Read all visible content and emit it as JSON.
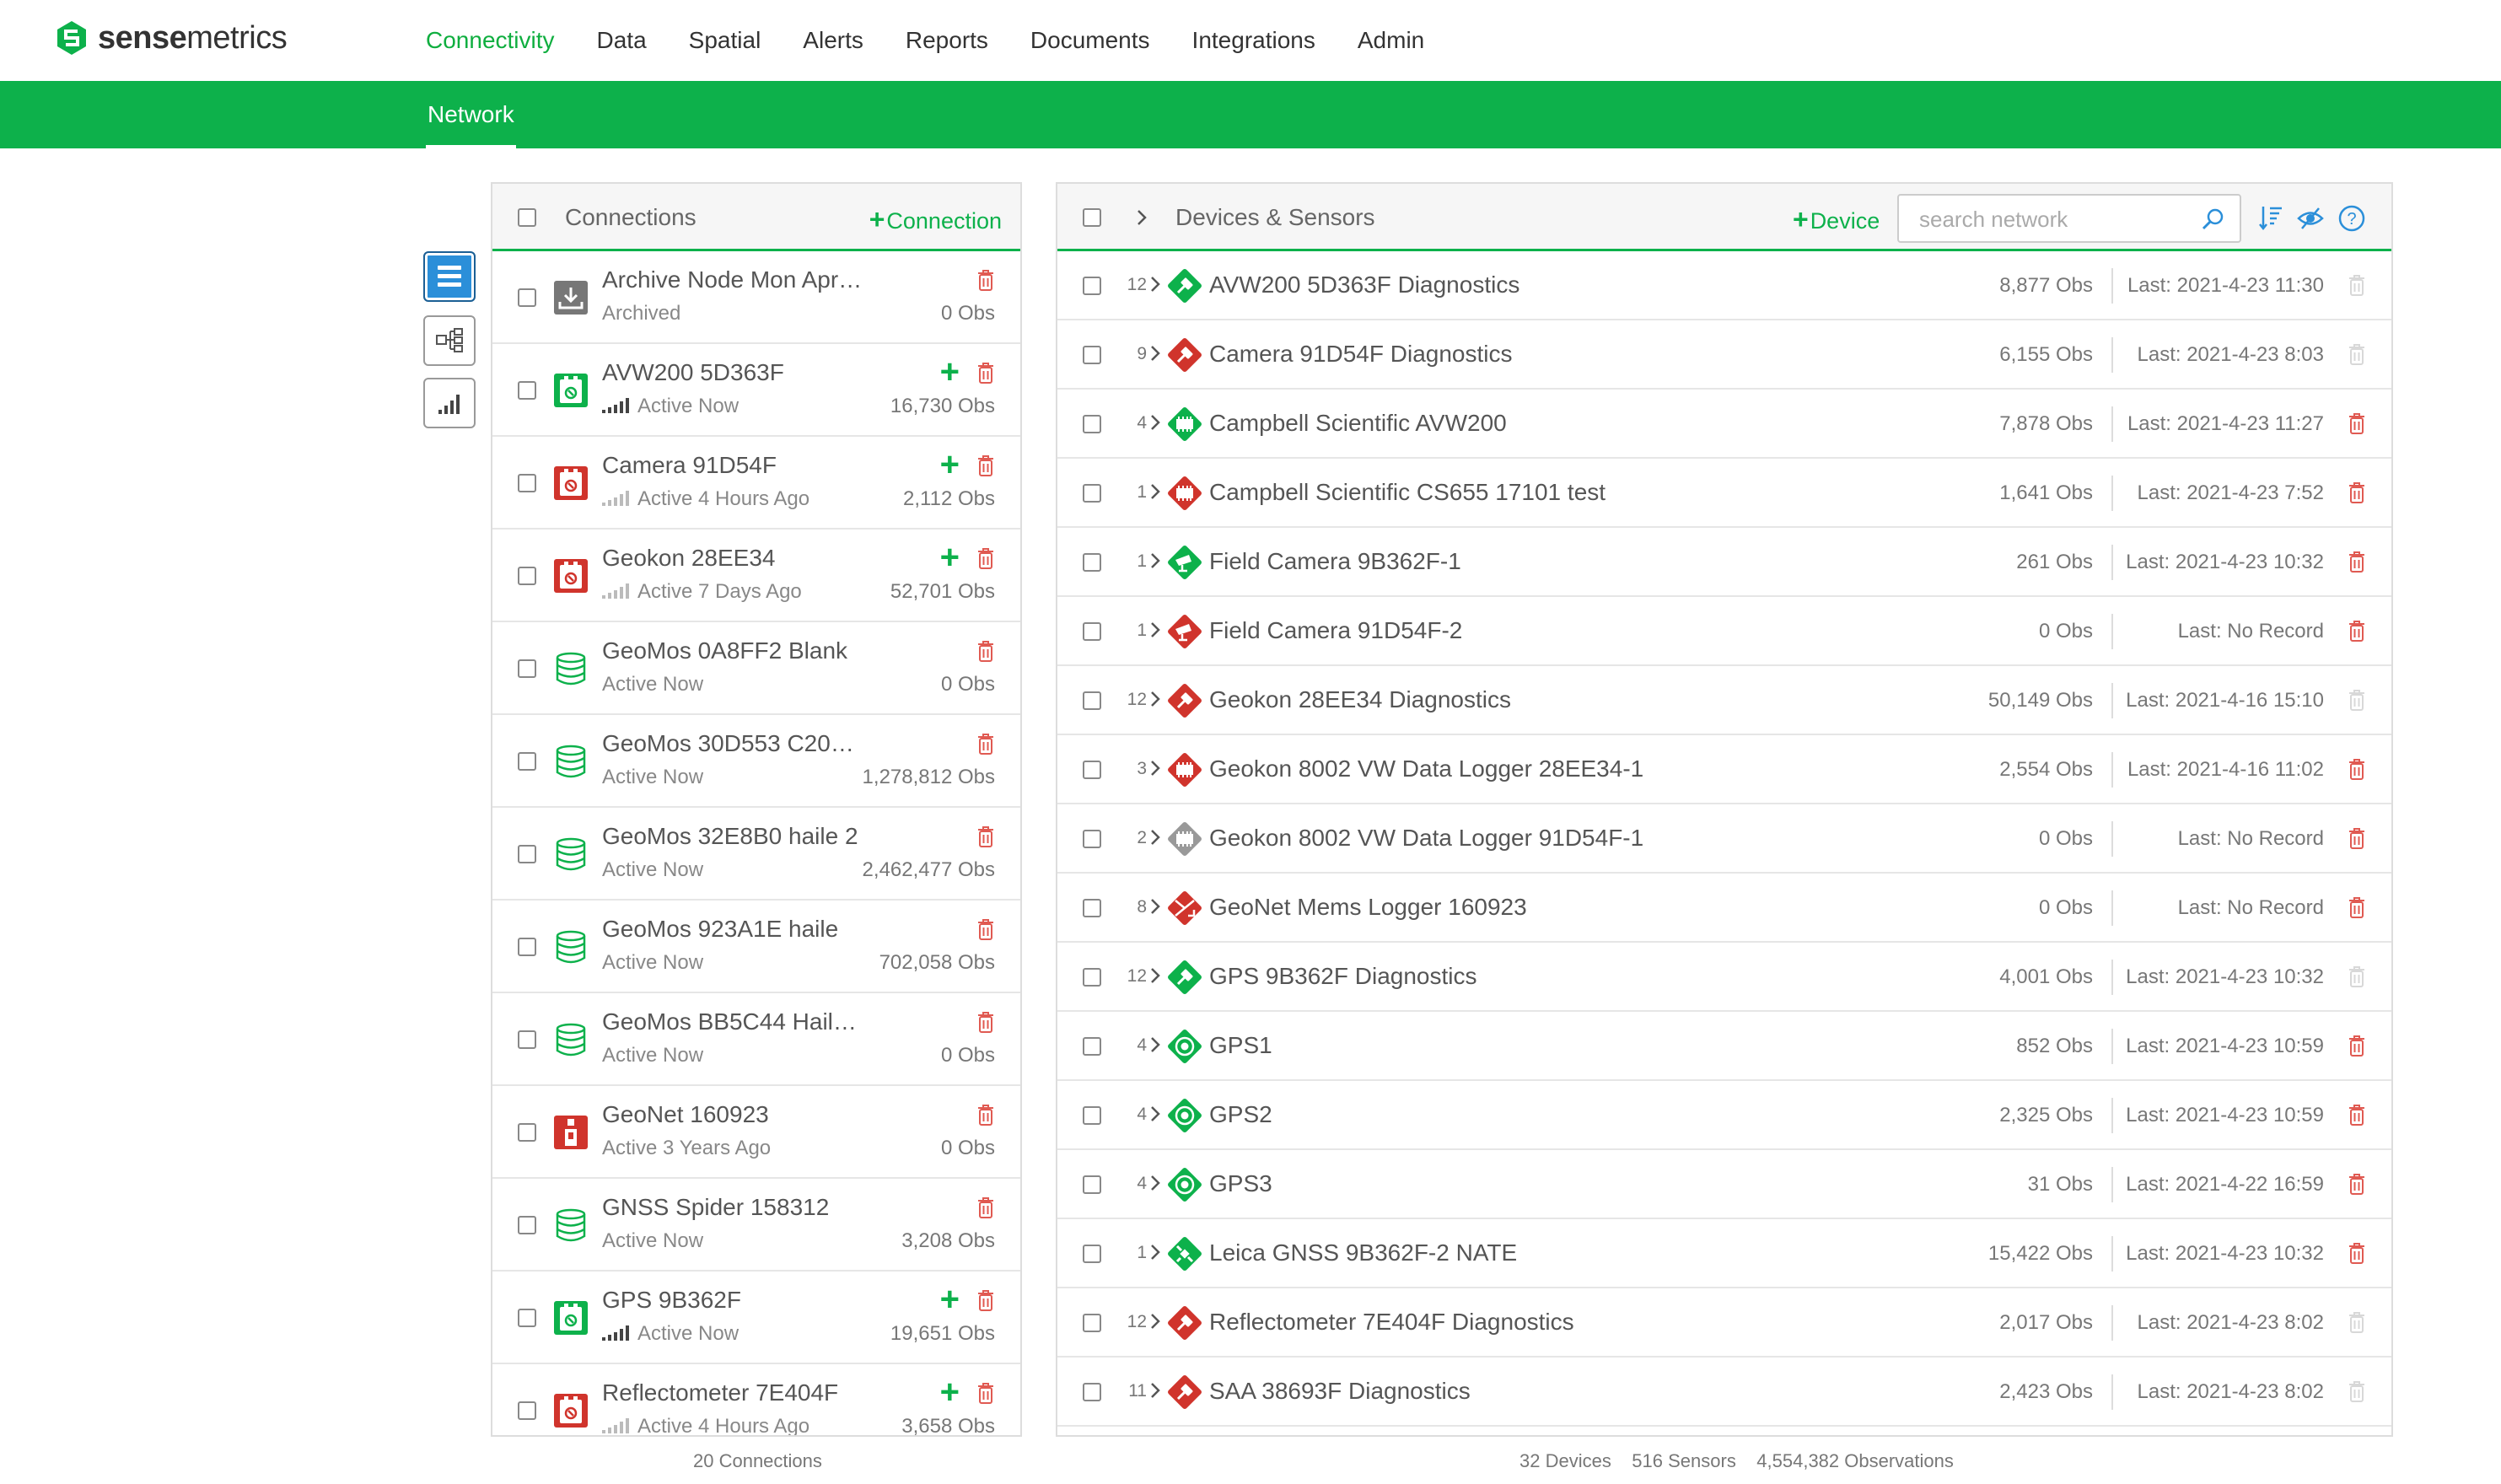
{
  "app": {
    "brand_bold": "sense",
    "brand_light": "metrics",
    "nav": [
      {
        "label": "Connectivity",
        "active": true
      },
      {
        "label": "Data"
      },
      {
        "label": "Spatial"
      },
      {
        "label": "Alerts"
      },
      {
        "label": "Reports"
      },
      {
        "label": "Documents"
      },
      {
        "label": "Integrations"
      },
      {
        "label": "Admin"
      }
    ],
    "subtab": "Network",
    "accent_color": "#0db14b"
  },
  "connections": {
    "title": "Connections",
    "add_label": "Connection",
    "footer": "20 Connections",
    "items": [
      {
        "name": "Archive Node Mon Apr…",
        "status": "Archived",
        "obs": "0 Obs",
        "icon": "archive-icon",
        "signal": false,
        "plus": false
      },
      {
        "name": "AVW200 5D363F",
        "status": "Active Now",
        "obs": "16,730 Obs",
        "icon": "green-logger-icon",
        "signal": "strong",
        "plus": true
      },
      {
        "name": "Camera 91D54F",
        "status": "Active 4 Hours Ago",
        "obs": "2,112 Obs",
        "icon": "red-logger-icon",
        "signal": "weak",
        "plus": true
      },
      {
        "name": "Geokon 28EE34",
        "status": "Active 7 Days Ago",
        "obs": "52,701 Obs",
        "icon": "red-logger-icon",
        "signal": "weak",
        "plus": true
      },
      {
        "name": "GeoMos 0A8FF2 Blank",
        "status": "Active Now",
        "obs": "0 Obs",
        "icon": "database-icon",
        "signal": false,
        "plus": false
      },
      {
        "name": "GeoMos 30D553 C20…",
        "status": "Active Now",
        "obs": "1,278,812 Obs",
        "icon": "database-icon",
        "signal": false,
        "plus": false
      },
      {
        "name": "GeoMos 32E8B0 haile 2",
        "status": "Active Now",
        "obs": "2,462,477 Obs",
        "icon": "database-icon",
        "signal": false,
        "plus": false
      },
      {
        "name": "GeoMos 923A1E haile",
        "status": "Active Now",
        "obs": "702,058 Obs",
        "icon": "database-icon",
        "signal": false,
        "plus": false
      },
      {
        "name": "GeoMos BB5C44 Hail…",
        "status": "Active Now",
        "obs": "0 Obs",
        "icon": "database-icon",
        "signal": false,
        "plus": false
      },
      {
        "name": "GeoNet 160923",
        "status": "Active 3 Years Ago",
        "obs": "0 Obs",
        "icon": "red-node-icon",
        "signal": false,
        "plus": false
      },
      {
        "name": "GNSS Spider 158312",
        "status": "Active Now",
        "obs": "3,208 Obs",
        "icon": "database-icon",
        "signal": false,
        "plus": false
      },
      {
        "name": "GPS 9B362F",
        "status": "Active Now",
        "obs": "19,651 Obs",
        "icon": "green-logger-icon",
        "signal": "strong",
        "plus": true
      },
      {
        "name": "Reflectometer 7E404F",
        "status": "Active 4 Hours Ago",
        "obs": "3,658 Obs",
        "icon": "red-logger-icon",
        "signal": "weak",
        "plus": true
      }
    ]
  },
  "devices": {
    "title": "Devices & Sensors",
    "add_label": "Device",
    "search_placeholder": "search network",
    "footer_devices": "32 Devices",
    "footer_sensors": "516 Sensors",
    "footer_obs": "4,554,382 Observations",
    "items": [
      {
        "count": "12",
        "name": "AVW200 5D363F Diagnostics",
        "obs": "8,877 Obs",
        "last": "Last: 2021-4-23 11:30",
        "color": "#0db14b",
        "glyph": "wrench",
        "trash": "light"
      },
      {
        "count": "9",
        "name": "Camera 91D54F Diagnostics",
        "obs": "6,155 Obs",
        "last": "Last: 2021-4-23 8:03",
        "color": "#d0342c",
        "glyph": "wrench",
        "trash": "light"
      },
      {
        "count": "4",
        "name": "Campbell Scientific AVW200",
        "obs": "7,878 Obs",
        "last": "Last: 2021-4-23 11:27",
        "color": "#0db14b",
        "glyph": "chip",
        "trash": "red"
      },
      {
        "count": "1",
        "name": "Campbell Scientific CS655 17101 test",
        "obs": "1,641 Obs",
        "last": "Last: 2021-4-23 7:52",
        "color": "#d0342c",
        "glyph": "chip",
        "trash": "red"
      },
      {
        "count": "1",
        "name": "Field Camera 9B362F-1",
        "obs": "261 Obs",
        "last": "Last: 2021-4-23 10:32",
        "color": "#0db14b",
        "glyph": "camera",
        "trash": "red"
      },
      {
        "count": "1",
        "name": "Field Camera 91D54F-2",
        "obs": "0 Obs",
        "last": "Last: No Record",
        "color": "#d0342c",
        "glyph": "camera",
        "trash": "red"
      },
      {
        "count": "12",
        "name": "Geokon 28EE34 Diagnostics",
        "obs": "50,149 Obs",
        "last": "Last: 2021-4-16 15:10",
        "color": "#d0342c",
        "glyph": "wrench",
        "trash": "light"
      },
      {
        "count": "3",
        "name": "Geokon 8002 VW Data Logger 28EE34-1",
        "obs": "2,554 Obs",
        "last": "Last: 2021-4-16 11:02",
        "color": "#d0342c",
        "glyph": "chip",
        "trash": "red"
      },
      {
        "count": "2",
        "name": "Geokon 8002 VW Data Logger 91D54F-1",
        "obs": "0 Obs",
        "last": "Last: No Record",
        "color": "#999999",
        "glyph": "chip",
        "trash": "red"
      },
      {
        "count": "8",
        "name": "GeoNet Mems Logger 160923",
        "obs": "0 Obs",
        "last": "Last: No Record",
        "color": "#d0342c",
        "glyph": "arrows",
        "trash": "red"
      },
      {
        "count": "12",
        "name": "GPS 9B362F Diagnostics",
        "obs": "4,001 Obs",
        "last": "Last: 2021-4-23 10:32",
        "color": "#0db14b",
        "glyph": "wrench",
        "trash": "light"
      },
      {
        "count": "4",
        "name": "GPS1",
        "obs": "852 Obs",
        "last": "Last: 2021-4-23 10:59",
        "color": "#0db14b",
        "glyph": "target",
        "trash": "red"
      },
      {
        "count": "4",
        "name": "GPS2",
        "obs": "2,325 Obs",
        "last": "Last: 2021-4-23 10:59",
        "color": "#0db14b",
        "glyph": "target",
        "trash": "red"
      },
      {
        "count": "4",
        "name": "GPS3",
        "obs": "31 Obs",
        "last": "Last: 2021-4-22 16:59",
        "color": "#0db14b",
        "glyph": "target",
        "trash": "red"
      },
      {
        "count": "1",
        "name": "Leica GNSS 9B362F-2 NATE",
        "obs": "15,422 Obs",
        "last": "Last: 2021-4-23 10:32",
        "color": "#0db14b",
        "glyph": "satellite",
        "trash": "red"
      },
      {
        "count": "12",
        "name": "Reflectometer 7E404F Diagnostics",
        "obs": "2,017 Obs",
        "last": "Last: 2021-4-23 8:02",
        "color": "#d0342c",
        "glyph": "wrench",
        "trash": "light"
      },
      {
        "count": "11",
        "name": "SAA 38693F Diagnostics",
        "obs": "2,423 Obs",
        "last": "Last: 2021-4-23 8:02",
        "color": "#d0342c",
        "glyph": "wrench",
        "trash": "light"
      }
    ]
  }
}
